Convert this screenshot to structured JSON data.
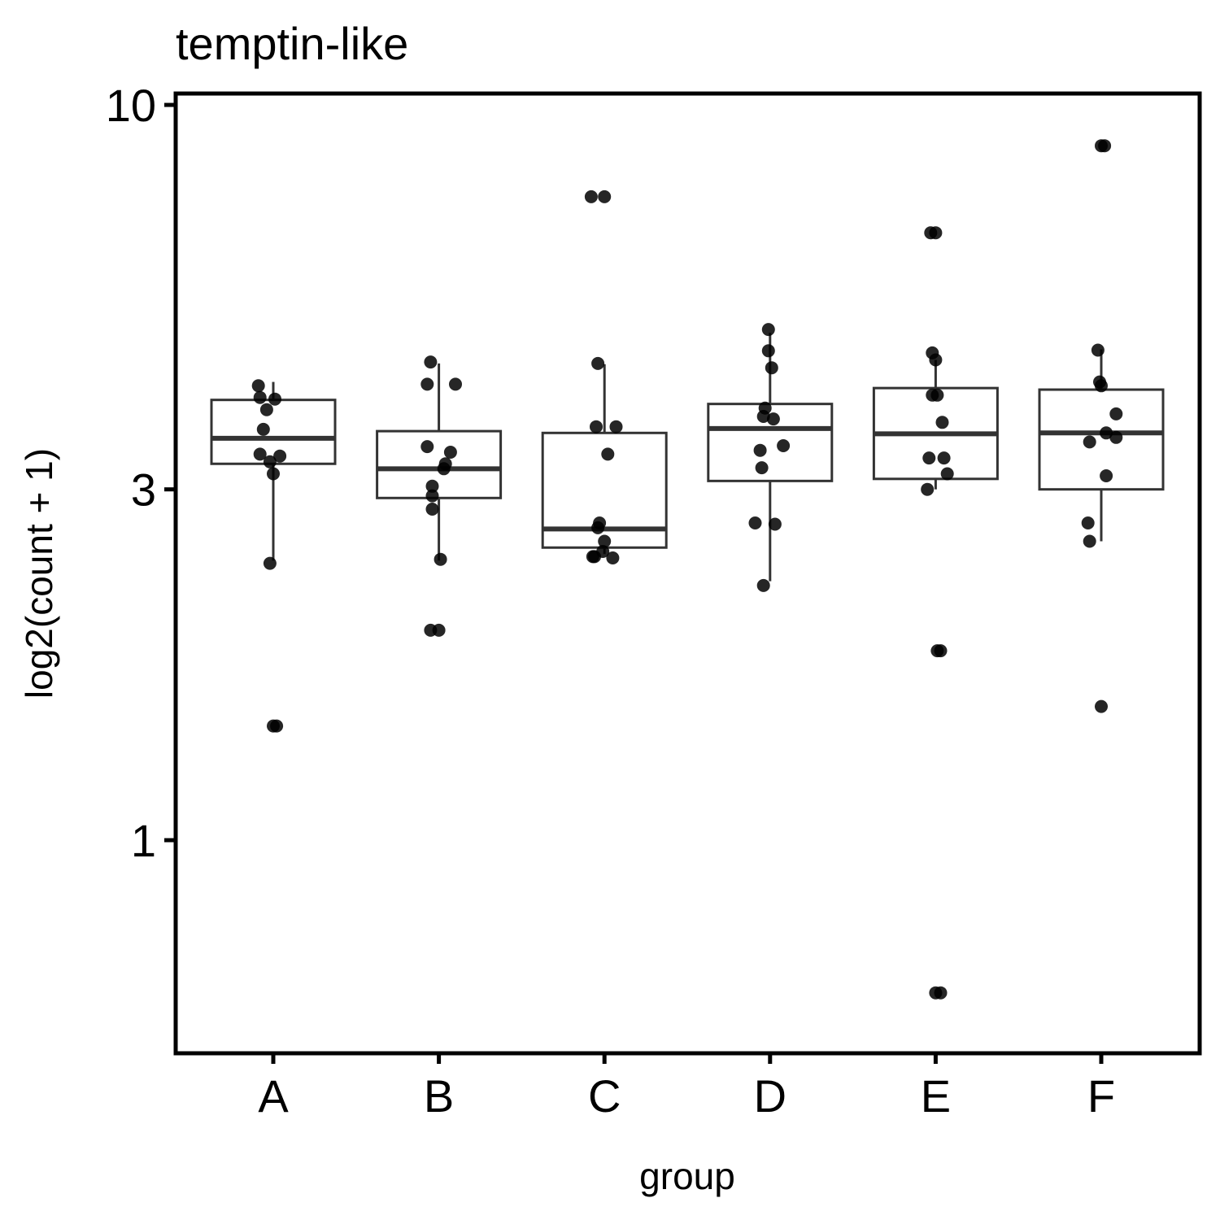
{
  "chart_data": {
    "type": "box",
    "title": "temptin-like",
    "xlabel": "group",
    "ylabel": "log2(count + 1)",
    "y_scale": "log10",
    "ylim": [
      0.55,
      10
    ],
    "y_ticks": [
      {
        "value": 1,
        "label": "1"
      },
      {
        "value": 3,
        "label": "3"
      },
      {
        "value": 10,
        "label": "10"
      }
    ],
    "grid": false,
    "categories": [
      "A",
      "B",
      "C",
      "D",
      "E",
      "F"
    ],
    "boxes": [
      {
        "group": "A",
        "whisker_low": 2.4,
        "q1": 3.25,
        "median": 3.52,
        "q3": 3.97,
        "whisker_high": 4.2
      },
      {
        "group": "B",
        "whisker_low": 2.4,
        "q1": 2.92,
        "median": 3.2,
        "q3": 3.6,
        "whisker_high": 4.45
      },
      {
        "group": "C",
        "whisker_low": 2.45,
        "q1": 2.5,
        "median": 2.65,
        "q3": 3.58,
        "whisker_high": 4.44
      },
      {
        "group": "D",
        "whisker_low": 2.25,
        "q1": 3.08,
        "median": 3.63,
        "q3": 3.92,
        "whisker_high": 4.9
      },
      {
        "group": "E",
        "whisker_low": 3.0,
        "q1": 3.1,
        "median": 3.57,
        "q3": 4.12,
        "whisker_high": 4.5
      },
      {
        "group": "F",
        "whisker_low": 2.55,
        "q1": 3.0,
        "median": 3.58,
        "q3": 4.1,
        "whisker_high": 4.65
      }
    ],
    "points": [
      {
        "group": "A",
        "y": 4.15,
        "offset": -0.09
      },
      {
        "group": "A",
        "y": 4.0,
        "offset": -0.08
      },
      {
        "group": "A",
        "y": 3.98,
        "offset": 0.01
      },
      {
        "group": "A",
        "y": 3.85,
        "offset": -0.04
      },
      {
        "group": "A",
        "y": 3.62,
        "offset": -0.06
      },
      {
        "group": "A",
        "y": 3.35,
        "offset": -0.08
      },
      {
        "group": "A",
        "y": 3.33,
        "offset": 0.04
      },
      {
        "group": "A",
        "y": 3.27,
        "offset": -0.02
      },
      {
        "group": "A",
        "y": 3.15,
        "offset": 0.0
      },
      {
        "group": "A",
        "y": 2.38,
        "offset": -0.02
      },
      {
        "group": "A",
        "y": 1.43,
        "offset": 0.0
      },
      {
        "group": "A",
        "y": 1.43,
        "offset": 0.02
      },
      {
        "group": "B",
        "y": 4.47,
        "offset": -0.05
      },
      {
        "group": "B",
        "y": 4.17,
        "offset": -0.07
      },
      {
        "group": "B",
        "y": 4.17,
        "offset": 0.1
      },
      {
        "group": "B",
        "y": 3.43,
        "offset": -0.07
      },
      {
        "group": "B",
        "y": 3.37,
        "offset": 0.07
      },
      {
        "group": "B",
        "y": 3.25,
        "offset": 0.04
      },
      {
        "group": "B",
        "y": 3.2,
        "offset": 0.03
      },
      {
        "group": "B",
        "y": 3.03,
        "offset": -0.04
      },
      {
        "group": "B",
        "y": 2.94,
        "offset": -0.04
      },
      {
        "group": "B",
        "y": 2.82,
        "offset": -0.04
      },
      {
        "group": "B",
        "y": 2.41,
        "offset": 0.01
      },
      {
        "group": "B",
        "y": 1.93,
        "offset": -0.05
      },
      {
        "group": "B",
        "y": 1.93,
        "offset": 0.0
      },
      {
        "group": "C",
        "y": 7.5,
        "offset": -0.08
      },
      {
        "group": "C",
        "y": 7.5,
        "offset": 0.0
      },
      {
        "group": "C",
        "y": 4.45,
        "offset": -0.04
      },
      {
        "group": "C",
        "y": 3.65,
        "offset": -0.05
      },
      {
        "group": "C",
        "y": 3.65,
        "offset": 0.07
      },
      {
        "group": "C",
        "y": 3.35,
        "offset": 0.02
      },
      {
        "group": "C",
        "y": 2.7,
        "offset": -0.03
      },
      {
        "group": "C",
        "y": 2.66,
        "offset": -0.04
      },
      {
        "group": "C",
        "y": 2.55,
        "offset": 0.0
      },
      {
        "group": "C",
        "y": 2.47,
        "offset": -0.01
      },
      {
        "group": "C",
        "y": 2.43,
        "offset": -0.07
      },
      {
        "group": "C",
        "y": 2.43,
        "offset": -0.06
      },
      {
        "group": "C",
        "y": 2.42,
        "offset": 0.05
      },
      {
        "group": "D",
        "y": 4.95,
        "offset": -0.01
      },
      {
        "group": "D",
        "y": 4.63,
        "offset": -0.01
      },
      {
        "group": "D",
        "y": 4.39,
        "offset": 0.01
      },
      {
        "group": "D",
        "y": 3.87,
        "offset": -0.03
      },
      {
        "group": "D",
        "y": 3.77,
        "offset": -0.04
      },
      {
        "group": "D",
        "y": 3.74,
        "offset": 0.02
      },
      {
        "group": "D",
        "y": 3.44,
        "offset": 0.08
      },
      {
        "group": "D",
        "y": 3.39,
        "offset": -0.06
      },
      {
        "group": "D",
        "y": 3.21,
        "offset": -0.05
      },
      {
        "group": "D",
        "y": 2.7,
        "offset": -0.09
      },
      {
        "group": "D",
        "y": 2.69,
        "offset": 0.03
      },
      {
        "group": "D",
        "y": 2.22,
        "offset": -0.04
      },
      {
        "group": "E",
        "y": 6.7,
        "offset": -0.03
      },
      {
        "group": "E",
        "y": 6.7,
        "offset": 0.0
      },
      {
        "group": "E",
        "y": 4.6,
        "offset": -0.02
      },
      {
        "group": "E",
        "y": 4.5,
        "offset": 0.0
      },
      {
        "group": "E",
        "y": 4.03,
        "offset": 0.01
      },
      {
        "group": "E",
        "y": 4.03,
        "offset": -0.02
      },
      {
        "group": "E",
        "y": 3.7,
        "offset": 0.04
      },
      {
        "group": "E",
        "y": 3.31,
        "offset": -0.04
      },
      {
        "group": "E",
        "y": 3.31,
        "offset": 0.05
      },
      {
        "group": "E",
        "y": 3.15,
        "offset": 0.07
      },
      {
        "group": "E",
        "y": 3.0,
        "offset": -0.05
      },
      {
        "group": "E",
        "y": 1.81,
        "offset": 0.01
      },
      {
        "group": "E",
        "y": 1.81,
        "offset": 0.03
      },
      {
        "group": "E",
        "y": 0.62,
        "offset": 0.0
      },
      {
        "group": "E",
        "y": 0.62,
        "offset": 0.03
      },
      {
        "group": "F",
        "y": 8.8,
        "offset": 0.0
      },
      {
        "group": "F",
        "y": 8.8,
        "offset": 0.02
      },
      {
        "group": "F",
        "y": 4.64,
        "offset": -0.02
      },
      {
        "group": "F",
        "y": 4.2,
        "offset": -0.01
      },
      {
        "group": "F",
        "y": 4.15,
        "offset": 0.0
      },
      {
        "group": "F",
        "y": 3.8,
        "offset": 0.09
      },
      {
        "group": "F",
        "y": 3.58,
        "offset": 0.03
      },
      {
        "group": "F",
        "y": 3.53,
        "offset": 0.09
      },
      {
        "group": "F",
        "y": 3.48,
        "offset": -0.07
      },
      {
        "group": "F",
        "y": 3.13,
        "offset": 0.03
      },
      {
        "group": "F",
        "y": 2.7,
        "offset": -0.08
      },
      {
        "group": "F",
        "y": 2.55,
        "offset": -0.07
      },
      {
        "group": "F",
        "y": 1.52,
        "offset": 0.0
      }
    ]
  }
}
